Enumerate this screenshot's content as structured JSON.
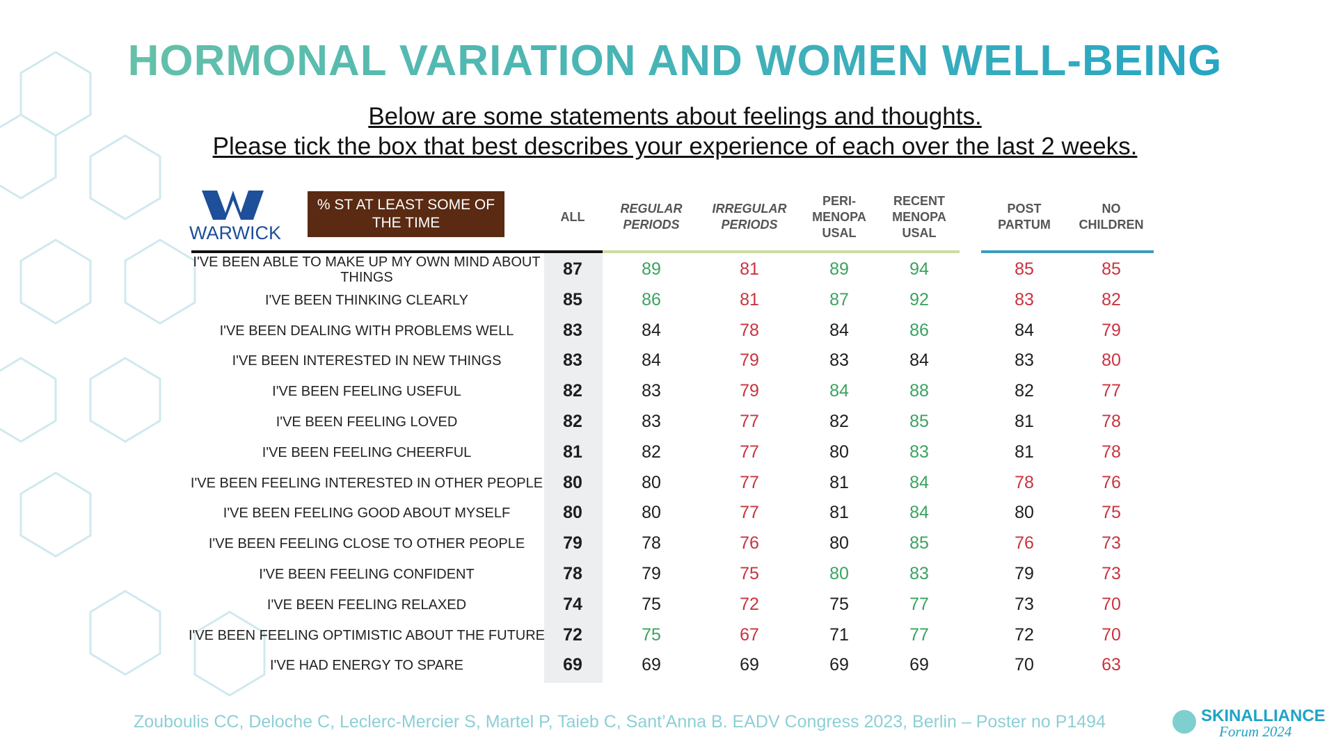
{
  "header": {
    "title": "HORMONAL VARIATION AND WOMEN WELL-BEING",
    "subtitle": [
      "Below are some statements about feelings and thoughts.",
      "Please tick the box that best describes your experience of each over the last 2 weeks."
    ]
  },
  "logo": {
    "text": "WARWICK"
  },
  "table": {
    "label_header": "% ST AT LEAST SOME OF THE TIME",
    "palette": {
      "g": "#3aa35f",
      "r": "#c9333f",
      "k": "#1e1e1e"
    },
    "columns": [
      {
        "lines": [
          "ALL"
        ],
        "italic": false
      },
      {
        "lines": [
          "REGULAR",
          "PERIODS"
        ],
        "italic": true
      },
      {
        "lines": [
          "IRREGULAR",
          "PERIODS"
        ],
        "italic": true
      },
      {
        "lines": [
          "PERI-",
          "MENOPA",
          "USAL"
        ],
        "italic": false
      },
      {
        "lines": [
          "RECENT",
          "MENOPA",
          "USAL"
        ],
        "italic": false
      },
      {
        "lines": [
          "POST",
          "PARTUM"
        ],
        "italic": false
      },
      {
        "lines": [
          "NO",
          "CHILDREN"
        ],
        "italic": false
      }
    ],
    "rows": [
      {
        "label": "I'VE BEEN ABLE TO MAKE UP MY OWN MIND ABOUT THINGS",
        "values": [
          87,
          89,
          81,
          89,
          94,
          85,
          85
        ],
        "colors": [
          "k",
          "g",
          "r",
          "g",
          "g",
          "r",
          "r"
        ]
      },
      {
        "label": "I'VE BEEN THINKING CLEARLY",
        "values": [
          85,
          86,
          81,
          87,
          92,
          83,
          82
        ],
        "colors": [
          "k",
          "g",
          "r",
          "g",
          "g",
          "r",
          "r"
        ]
      },
      {
        "label": "I'VE BEEN DEALING WITH PROBLEMS WELL",
        "values": [
          83,
          84,
          78,
          84,
          86,
          84,
          79
        ],
        "colors": [
          "k",
          "k",
          "r",
          "k",
          "g",
          "k",
          "r"
        ]
      },
      {
        "label": "I'VE BEEN INTERESTED IN NEW THINGS",
        "values": [
          83,
          84,
          79,
          83,
          84,
          83,
          80
        ],
        "colors": [
          "k",
          "k",
          "r",
          "k",
          "k",
          "k",
          "r"
        ]
      },
      {
        "label": "I'VE BEEN FEELING USEFUL",
        "values": [
          82,
          83,
          79,
          84,
          88,
          82,
          77
        ],
        "colors": [
          "k",
          "k",
          "r",
          "g",
          "g",
          "k",
          "r"
        ]
      },
      {
        "label": "I'VE BEEN FEELING LOVED",
        "values": [
          82,
          83,
          77,
          82,
          85,
          81,
          78
        ],
        "colors": [
          "k",
          "k",
          "r",
          "k",
          "g",
          "k",
          "r"
        ]
      },
      {
        "label": "I'VE BEEN FEELING CHEERFUL",
        "values": [
          81,
          82,
          77,
          80,
          83,
          81,
          78
        ],
        "colors": [
          "k",
          "k",
          "r",
          "k",
          "g",
          "k",
          "r"
        ]
      },
      {
        "label": "I'VE BEEN FEELING INTERESTED IN OTHER PEOPLE",
        "values": [
          80,
          80,
          77,
          81,
          84,
          78,
          76
        ],
        "colors": [
          "k",
          "k",
          "r",
          "k",
          "g",
          "r",
          "r"
        ]
      },
      {
        "label": "I'VE BEEN FEELING GOOD ABOUT MYSELF",
        "values": [
          80,
          80,
          77,
          81,
          84,
          80,
          75
        ],
        "colors": [
          "k",
          "k",
          "r",
          "k",
          "g",
          "k",
          "r"
        ]
      },
      {
        "label": "I'VE BEEN FEELING CLOSE TO OTHER PEOPLE",
        "values": [
          79,
          78,
          76,
          80,
          85,
          76,
          73
        ],
        "colors": [
          "k",
          "k",
          "r",
          "k",
          "g",
          "r",
          "r"
        ]
      },
      {
        "label": "I'VE BEEN FEELING CONFIDENT",
        "values": [
          78,
          79,
          75,
          80,
          83,
          79,
          73
        ],
        "colors": [
          "k",
          "k",
          "r",
          "g",
          "g",
          "k",
          "r"
        ]
      },
      {
        "label": "I'VE BEEN FEELING RELAXED",
        "values": [
          74,
          75,
          72,
          75,
          77,
          73,
          70
        ],
        "colors": [
          "k",
          "k",
          "r",
          "k",
          "g",
          "k",
          "r"
        ]
      },
      {
        "label": "I'VE BEEN FEELING OPTIMISTIC ABOUT THE FUTURE",
        "values": [
          72,
          75,
          67,
          71,
          77,
          72,
          70
        ],
        "colors": [
          "k",
          "g",
          "r",
          "k",
          "g",
          "k",
          "r"
        ]
      },
      {
        "label": "I'VE HAD ENERGY TO SPARE",
        "values": [
          69,
          69,
          69,
          69,
          69,
          70,
          63
        ],
        "colors": [
          "k",
          "k",
          "k",
          "k",
          "k",
          "k",
          "r"
        ]
      }
    ]
  },
  "footer": {
    "citation": "Zouboulis CC, Deloche C, Leclerc-Mercier S, Martel P, Taieb C, Sant’Anna B. EADV Congress 2023, Berlin – Poster no P1494"
  },
  "brand": {
    "name": "SKINALLIANCE",
    "tagline": "Forum 2024"
  }
}
